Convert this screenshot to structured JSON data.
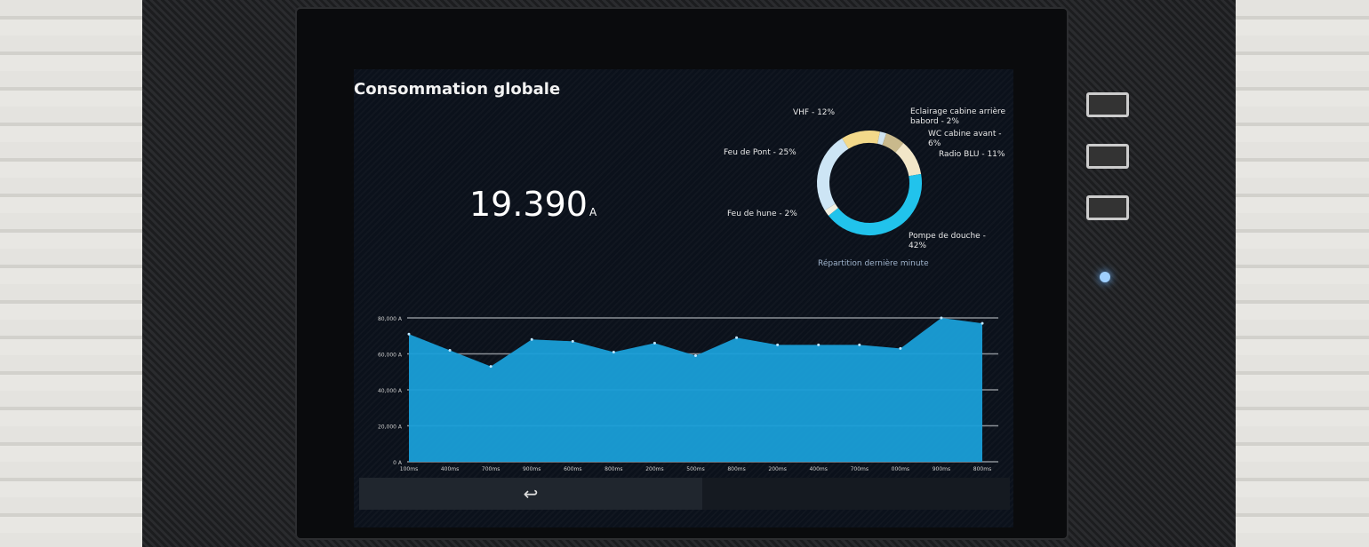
{
  "title": "Consommation globale",
  "current": {
    "value": "19.390",
    "unit": "A"
  },
  "donut": {
    "caption": "Répartition dernière minute",
    "slices": [
      {
        "label": "VHF - 12%",
        "value": 12,
        "color": "#f3d98a"
      },
      {
        "label": "Eclairage cabine arrière babord - 2%",
        "value": 2,
        "color": "#cfe3f0"
      },
      {
        "label": "WC cabine avant - 6%",
        "value": 6,
        "color": "#c9b98c"
      },
      {
        "label": "Radio BLU - 11%",
        "value": 11,
        "color": "#f2e6c8"
      },
      {
        "label": "Pompe de douche - 42%",
        "value": 42,
        "color": "#21c3ec"
      },
      {
        "label": "Feu de hune - 2%",
        "value": 2,
        "color": "#f1efe0"
      },
      {
        "label": "Feu de Pont - 25%",
        "value": 25,
        "color": "#cde5f5"
      }
    ]
  },
  "chart_data": {
    "type": "area",
    "x": [
      "100ms",
      "400ms",
      "700ms",
      "900ms",
      "600ms",
      "800ms",
      "200ms",
      "500ms",
      "800ms",
      "200ms",
      "400ms",
      "700ms",
      "000ms",
      "900ms",
      "800ms"
    ],
    "values": [
      71000,
      62000,
      53000,
      68000,
      67000,
      61000,
      66000,
      59000,
      69000,
      65000,
      65000,
      65000,
      63000,
      80000,
      77000
    ],
    "yticks": [
      "0 A",
      "20,000 A",
      "40,000 A",
      "60,000 A",
      "80,000 A"
    ],
    "ylim": [
      0,
      80000
    ],
    "grid": true,
    "color": "#1a9fd8"
  },
  "footer": {
    "back_icon": "↩"
  }
}
